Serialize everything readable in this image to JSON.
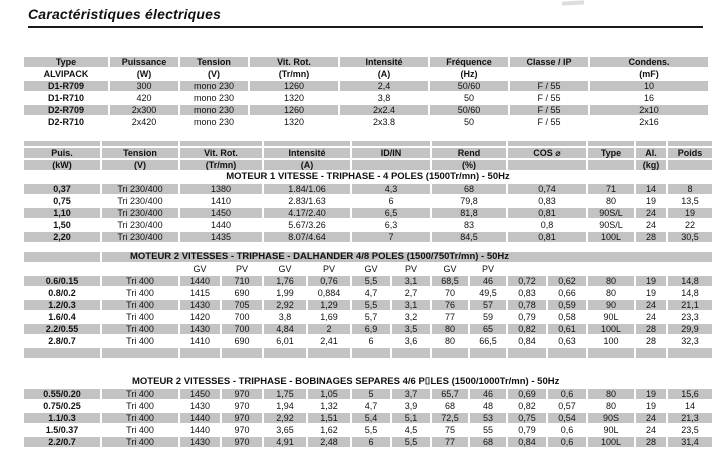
{
  "page": {
    "title": "Caractéristiques électriques"
  },
  "colors": {
    "row_gray": "#c3c3c3",
    "rule_black": "#1a1a1a"
  },
  "alvipack_table": {
    "headers_row1": [
      "Type",
      "Puissance",
      "Tension",
      "Vit. Rot.",
      "Intensité",
      "Fréquence",
      "Classe / IP",
      "Condens."
    ],
    "headers_row2": [
      "ALVIPACK",
      "(W)",
      "(V)",
      "(Tr/mn)",
      "(A)",
      "(Hz)",
      "",
      "(mF)"
    ],
    "rows": [
      [
        "D1-R709",
        "300",
        "mono 230",
        "1260",
        "2,4",
        "50/60",
        "F / 55",
        "10"
      ],
      [
        "D1-R710",
        "420",
        "mono 230",
        "1320",
        "3,8",
        "50",
        "F / 55",
        "16"
      ],
      [
        "D2-R709",
        "2x300",
        "mono 230",
        "1260",
        "2x2.4",
        "50/60",
        "F / 55",
        "2x10"
      ],
      [
        "D2-R710",
        "2x420",
        "mono 230",
        "1320",
        "2x3.8",
        "50",
        "F / 55",
        "2x16"
      ]
    ]
  },
  "motor_table": {
    "headers_row1": [
      "Puis.",
      "Tension",
      "Vit. Rot.",
      "Intensité",
      "ID/IN",
      "Rend",
      "COS ⌀",
      "Type",
      "Al.",
      "Poids"
    ],
    "headers_row2": [
      "(kW)",
      "(V)",
      "(Tr/mn)",
      "(A)",
      "",
      "(%)",
      "",
      "",
      "(kg)",
      ""
    ]
  },
  "section1": {
    "title": "MOTEUR 1 VITESSE - TRIPHASE - 4 POLES (1500Tr/mn) - 50Hz",
    "rows": [
      [
        "0,37",
        "Tri 230/400",
        "1380",
        "1.84/1.06",
        "4,3",
        "68",
        "0,74",
        "71",
        "14",
        "8"
      ],
      [
        "0,75",
        "Tri 230/400",
        "1410",
        "2.83/1.63",
        "6",
        "79,8",
        "0,83",
        "80",
        "19",
        "13,5"
      ],
      [
        "1,10",
        "Tri 230/400",
        "1450",
        "4.17/2.40",
        "6,5",
        "81,8",
        "0,81",
        "90S/L",
        "24",
        "19"
      ],
      [
        "1,50",
        "Tri 230/400",
        "1440",
        "5.67/3.26",
        "6,3",
        "83",
        "0,8",
        "90S/L",
        "24",
        "22"
      ],
      [
        "2,20",
        "Tri 230/400",
        "1435",
        "8.07/4.64",
        "7",
        "84,5",
        "0,81",
        "100L",
        "28",
        "30,5"
      ]
    ]
  },
  "section2": {
    "title": "MOTEUR 2 VITESSES - TRIPHASE - DALHANDER 4/8 POLES (1500/750Tr/mn) - 50Hz",
    "gv_pv_labels": [
      "GV",
      "PV",
      "GV",
      "PV",
      "GV",
      "PV",
      "GV",
      "PV"
    ],
    "rows": [
      [
        "0.6/0.15",
        "Tri 400",
        "1440",
        "710",
        "1,76",
        "0,76",
        "5,5",
        "3,1",
        "68,5",
        "46",
        "0,72",
        "0,62",
        "80",
        "19",
        "14,8"
      ],
      [
        "0.8/0.2",
        "Tri 400",
        "1415",
        "690",
        "1,99",
        "0,884",
        "4,7",
        "2,7",
        "70",
        "49,5",
        "0,83",
        "0,66",
        "80",
        "19",
        "14,8"
      ],
      [
        "1.2/0.3",
        "Tri 400",
        "1430",
        "705",
        "2,92",
        "1,29",
        "5,5",
        "3,1",
        "76",
        "57",
        "0,78",
        "0,59",
        "90",
        "24",
        "21,1"
      ],
      [
        "1.6/0.4",
        "Tri 400",
        "1420",
        "700",
        "3,8",
        "1,69",
        "5,7",
        "3,2",
        "77",
        "59",
        "0,79",
        "0,58",
        "90L",
        "24",
        "23,3"
      ],
      [
        "2.2/0.55",
        "Tri 400",
        "1430",
        "700",
        "4,84",
        "2",
        "6,9",
        "3,5",
        "80",
        "65",
        "0,82",
        "0,61",
        "100L",
        "28",
        "29,9"
      ],
      [
        "2.8/0.7",
        "Tri 400",
        "1410",
        "690",
        "6,01",
        "2,41",
        "6",
        "3,6",
        "80",
        "66,5",
        "0,84",
        "0,63",
        "100",
        "28",
        "32,3"
      ]
    ]
  },
  "section3": {
    "title": "MOTEUR 2 VITESSES - TRIPHASE - BOBINAGES SEPARES 4/6 P⌷LES (1500/1000Tr/mn) - 50Hz",
    "rows": [
      [
        "0.55/0.20",
        "Tri 400",
        "1450",
        "970",
        "1,75",
        "1,05",
        "5",
        "3,7",
        "65,7",
        "46",
        "0,69",
        "0,6",
        "80",
        "19",
        "15,6"
      ],
      [
        "0.75/0.25",
        "Tri 400",
        "1430",
        "970",
        "1,94",
        "1,32",
        "4,7",
        "3,9",
        "68",
        "48",
        "0,82",
        "0,57",
        "80",
        "19",
        "14"
      ],
      [
        "1.1/0.3",
        "Tri 400",
        "1440",
        "970",
        "2,92",
        "1,51",
        "5,4",
        "5,1",
        "72,5",
        "53",
        "0,75",
        "0,54",
        "90S",
        "24",
        "21,3"
      ],
      [
        "1.5/0.37",
        "Tri 400",
        "1440",
        "970",
        "3,65",
        "1,62",
        "5,5",
        "4,5",
        "75",
        "55",
        "0,79",
        "0,6",
        "90L",
        "24",
        "23,5"
      ],
      [
        "2.2/0.7",
        "Tri 400",
        "1430",
        "970",
        "4,91",
        "2,48",
        "6",
        "5,5",
        "77",
        "68",
        "0,84",
        "0,6",
        "100L",
        "28",
        "31,4"
      ]
    ]
  }
}
